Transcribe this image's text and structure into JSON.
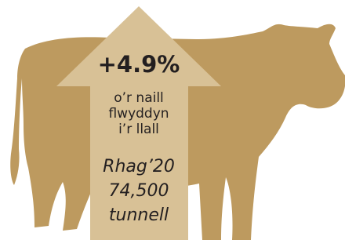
{
  "headline": {
    "change": "+4.9%",
    "description": [
      "o’r naill",
      "flwyddyn",
      "i’r llall"
    ]
  },
  "figure": {
    "period": "Rhag’20",
    "amount": "74,500",
    "unit": "tunnell"
  }
}
